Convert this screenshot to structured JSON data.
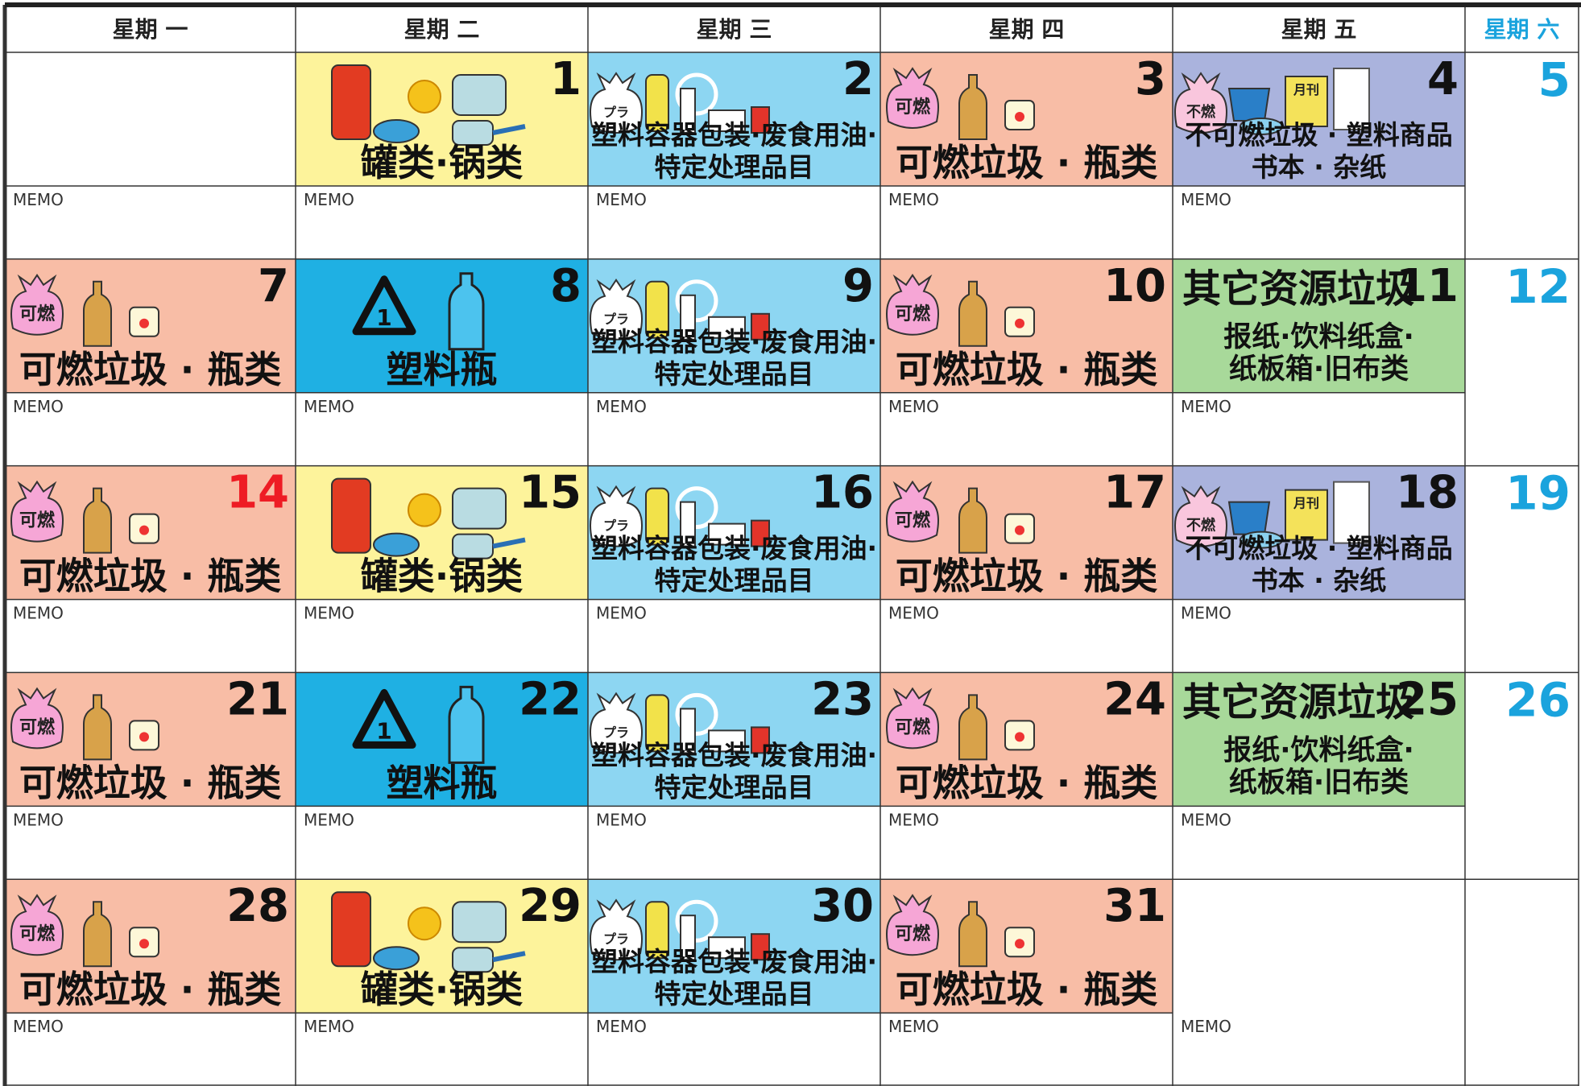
{
  "header": {
    "days": [
      "星期 一",
      "星期 二",
      "星期 三",
      "星期 四",
      "星期 五",
      "星期 六"
    ]
  },
  "weeks": [
    {
      "cells": [
        {
          "memo": "MEMO"
        },
        {
          "date": "1",
          "color": "#fdf39b",
          "lines": [
            "罐类·锅类"
          ],
          "memo": "MEMO"
        },
        {
          "date": "2",
          "color": "#8dd6f2",
          "icon_labels": [
            "プラ"
          ],
          "lines": [
            "塑料容器包装·废食用油·",
            "特定处理品目"
          ],
          "memo": "MEMO"
        },
        {
          "date": "3",
          "color": "#f8bda6",
          "icon_labels": [
            "可燃"
          ],
          "lines": [
            "可燃垃圾 · 瓶类"
          ],
          "memo": "MEMO"
        },
        {
          "date": "4",
          "color": "#aab3dd",
          "icon_labels": [
            "不燃",
            "月刊"
          ],
          "lines": [
            "不可燃垃圾 · 塑料商品",
            "书本 · 杂纸"
          ],
          "memo": "MEMO"
        }
      ],
      "saturday": "5"
    },
    {
      "cells": [
        {
          "date": "7",
          "color": "#f8bda6",
          "icon_labels": [
            "可燃"
          ],
          "lines": [
            "可燃垃圾 · 瓶类"
          ],
          "memo": "MEMO"
        },
        {
          "date": "8",
          "color": "#1fb0e3",
          "icon_labels": [
            "1"
          ],
          "lines": [
            "塑料瓶"
          ],
          "memo": "MEMO"
        },
        {
          "date": "9",
          "color": "#8dd6f2",
          "icon_labels": [
            "プラ"
          ],
          "lines": [
            "塑料容器包装·废食用油·",
            "特定处理品目"
          ],
          "memo": "MEMO"
        },
        {
          "date": "10",
          "color": "#f8bda6",
          "icon_labels": [
            "可燃"
          ],
          "lines": [
            "可燃垃圾 · 瓶类"
          ],
          "memo": "MEMO"
        },
        {
          "date": "11",
          "color": "#a8d99a",
          "lines": [
            "其它资源垃圾",
            "报纸·饮料纸盒·",
            "纸板箱·旧布类"
          ],
          "memo": "MEMO"
        }
      ],
      "saturday": "12"
    },
    {
      "cells": [
        {
          "date": "14",
          "date_color": "#ee1c24",
          "color": "#f8bda6",
          "icon_labels": [
            "可燃"
          ],
          "lines": [
            "可燃垃圾 · 瓶类"
          ],
          "memo": "MEMO"
        },
        {
          "date": "15",
          "color": "#fdf39b",
          "lines": [
            "罐类·锅类"
          ],
          "memo": "MEMO"
        },
        {
          "date": "16",
          "color": "#8dd6f2",
          "icon_labels": [
            "プラ"
          ],
          "lines": [
            "塑料容器包装·废食用油·",
            "特定处理品目"
          ],
          "memo": "MEMO"
        },
        {
          "date": "17",
          "color": "#f8bda6",
          "icon_labels": [
            "可燃"
          ],
          "lines": [
            "可燃垃圾 · 瓶类"
          ],
          "memo": "MEMO"
        },
        {
          "date": "18",
          "color": "#aab3dd",
          "icon_labels": [
            "不燃",
            "月刊"
          ],
          "lines": [
            "不可燃垃圾 · 塑料商品",
            "书本 · 杂纸"
          ],
          "memo": "MEMO"
        }
      ],
      "saturday": "19"
    },
    {
      "cells": [
        {
          "date": "21",
          "color": "#f8bda6",
          "icon_labels": [
            "可燃"
          ],
          "lines": [
            "可燃垃圾 · 瓶类"
          ],
          "memo": "MEMO"
        },
        {
          "date": "22",
          "color": "#1fb0e3",
          "icon_labels": [
            "1"
          ],
          "lines": [
            "塑料瓶"
          ],
          "memo": "MEMO"
        },
        {
          "date": "23",
          "color": "#8dd6f2",
          "icon_labels": [
            "プラ"
          ],
          "lines": [
            "塑料容器包装·废食用油·",
            "特定处理品目"
          ],
          "memo": "MEMO"
        },
        {
          "date": "24",
          "color": "#f8bda6",
          "icon_labels": [
            "可燃"
          ],
          "lines": [
            "可燃垃圾 · 瓶类"
          ],
          "memo": "MEMO"
        },
        {
          "date": "25",
          "color": "#a8d99a",
          "lines": [
            "其它资源垃圾",
            "报纸·饮料纸盒·",
            "纸板箱·旧布类"
          ],
          "memo": "MEMO"
        }
      ],
      "saturday": "26"
    },
    {
      "cells": [
        {
          "date": "28",
          "color": "#f8bda6",
          "icon_labels": [
            "可燃"
          ],
          "lines": [
            "可燃垃圾 · 瓶类"
          ],
          "memo": "MEMO"
        },
        {
          "date": "29",
          "color": "#fdf39b",
          "lines": [
            "罐类·锅类"
          ],
          "memo": "MEMO"
        },
        {
          "date": "30",
          "color": "#8dd6f2",
          "icon_labels": [
            "プラ"
          ],
          "lines": [
            "塑料容器包装·废食用油·",
            "特定处理品目"
          ],
          "memo": "MEMO"
        },
        {
          "date": "31",
          "color": "#f8bda6",
          "icon_labels": [
            "可燃"
          ],
          "lines": [
            "可燃垃圾 · 瓶类"
          ],
          "memo": "MEMO"
        },
        {
          "memo": "MEMO"
        }
      ]
    }
  ]
}
